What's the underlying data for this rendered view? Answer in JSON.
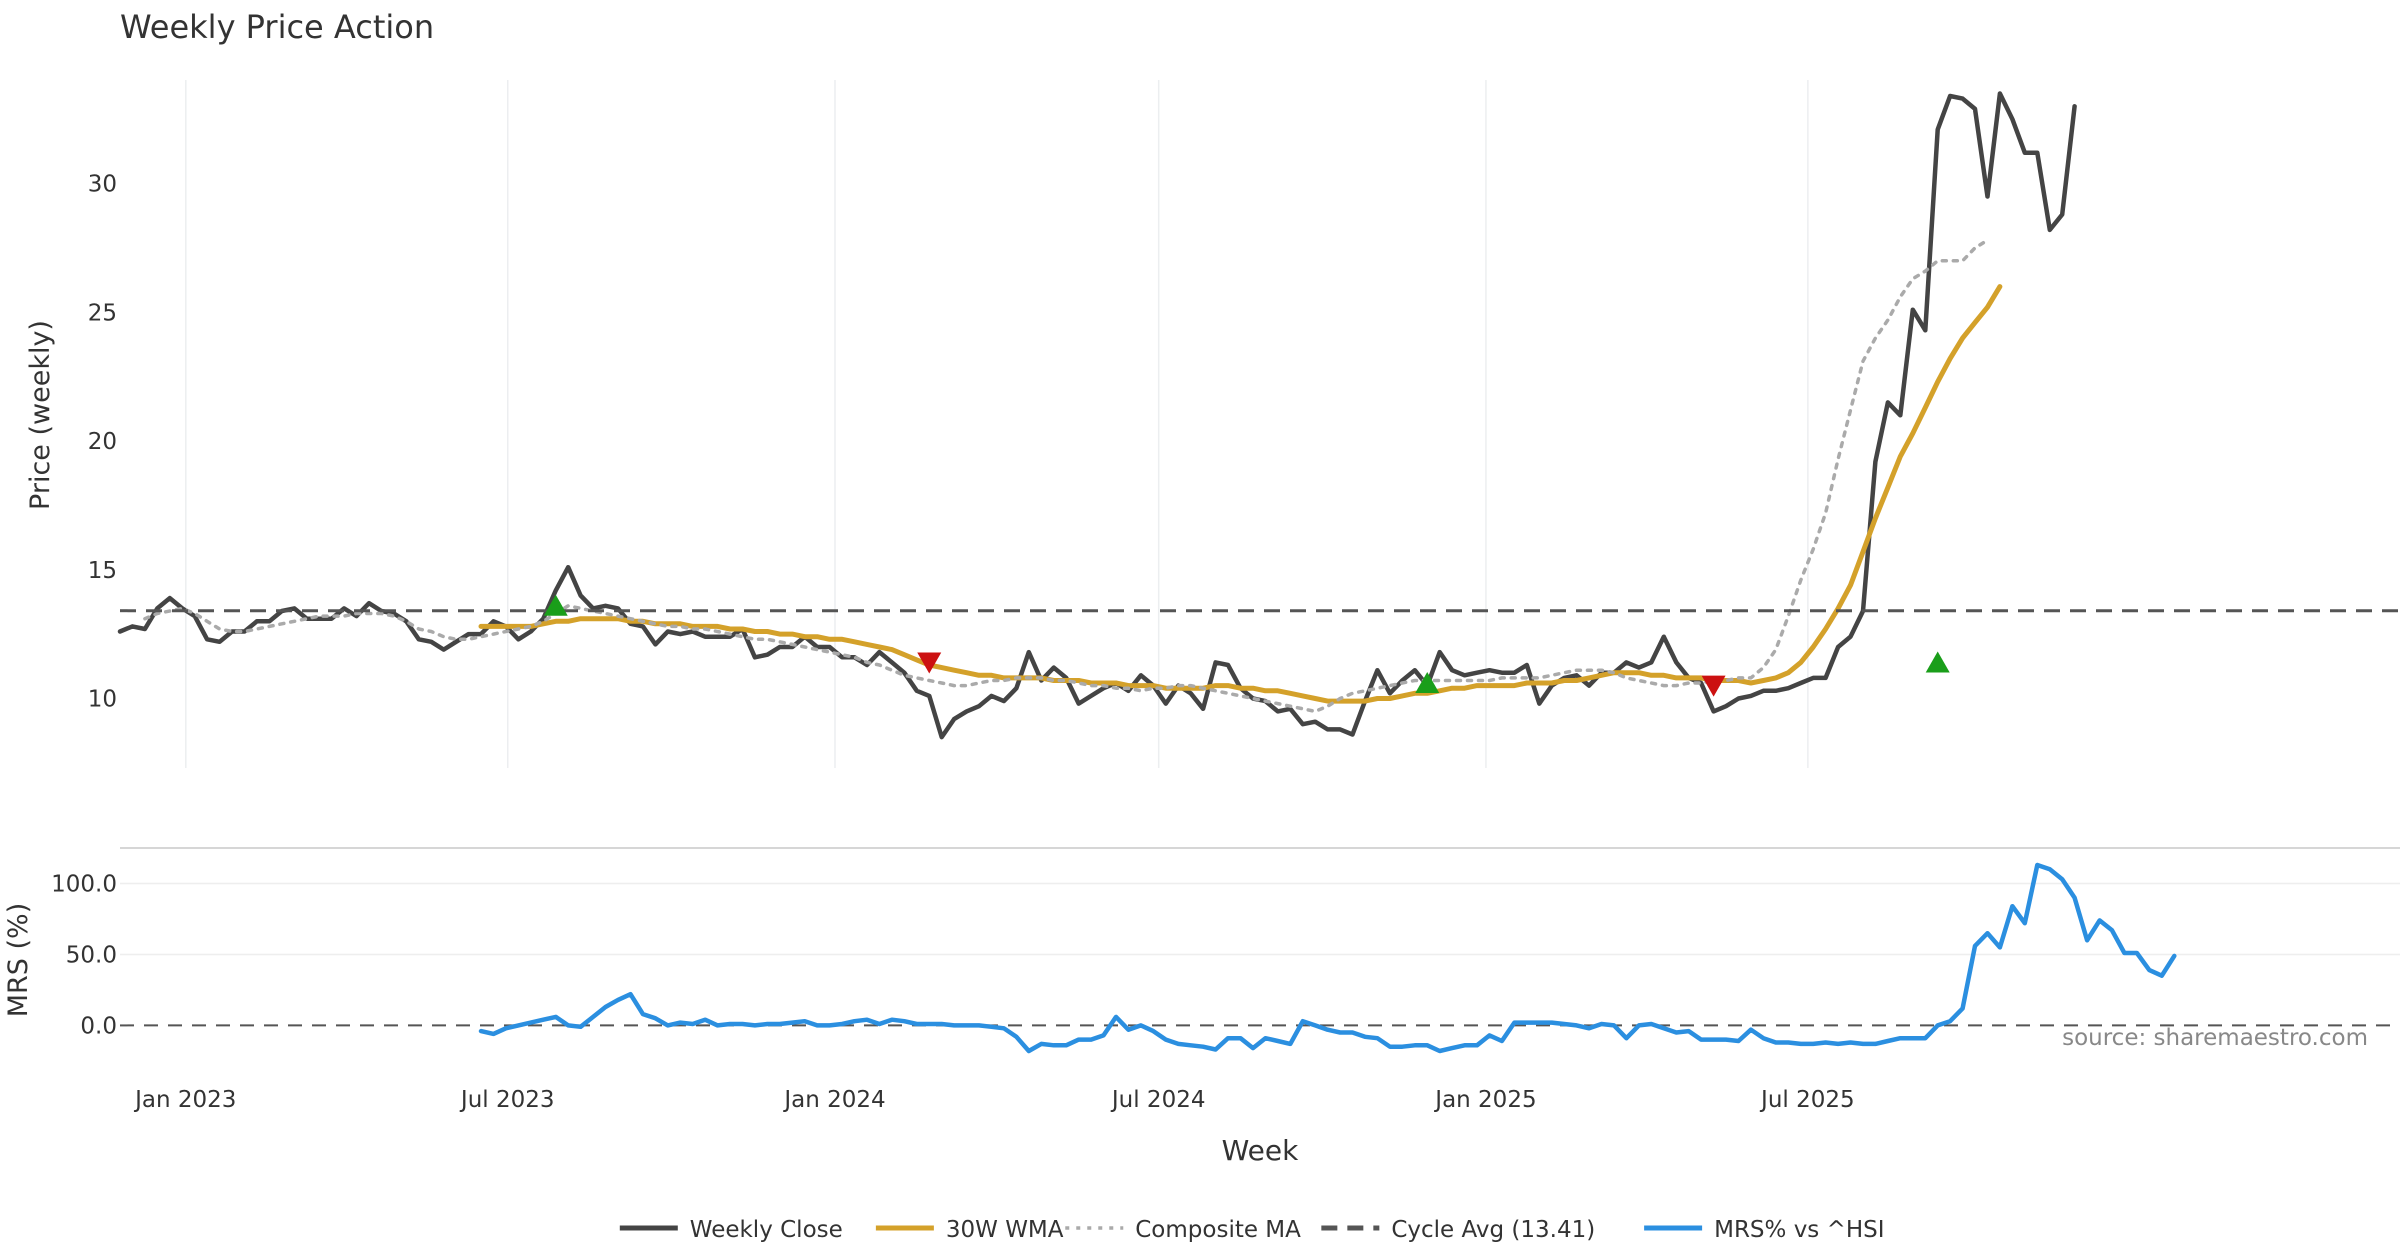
{
  "chart_data": {
    "type": "line",
    "title": "Weekly Price Action",
    "xlabel": "Week",
    "x_start": "2022-11-25",
    "x_step_days": 7,
    "x_tick_labels": [
      {
        "label": "Jan 2023",
        "date": "2023-01-01"
      },
      {
        "label": "Jul 2023",
        "date": "2023-07-01"
      },
      {
        "label": "Jan 2024",
        "date": "2024-01-01"
      },
      {
        "label": "Jul 2024",
        "date": "2024-07-01"
      },
      {
        "label": "Jan 2025",
        "date": "2025-01-01"
      },
      {
        "label": "Jul 2025",
        "date": "2025-07-01"
      }
    ],
    "price_panel": {
      "ylabel": "Price (weekly)",
      "ylim": [
        7.3,
        34.8
      ],
      "yticks": [
        10,
        15,
        20,
        25,
        30
      ],
      "grid": "vertical"
    },
    "mrs_panel": {
      "ylabel": "MRS (%)",
      "ylim": [
        -30,
        125
      ],
      "yticks": [
        0,
        50,
        100
      ],
      "ytick_labels": [
        "0.0",
        "50.0",
        "100.0"
      ],
      "grid": "horizontal"
    },
    "series": [
      {
        "name": "Weekly Close",
        "panel": "price",
        "color": "#444444",
        "style": "solid",
        "start_index": 0,
        "values": [
          12.6,
          12.8,
          12.7,
          13.5,
          13.9,
          13.5,
          13.2,
          12.3,
          12.2,
          12.6,
          12.6,
          13.0,
          13.0,
          13.4,
          13.5,
          13.1,
          13.1,
          13.1,
          13.5,
          13.2,
          13.7,
          13.4,
          13.3,
          13.0,
          12.3,
          12.2,
          11.9,
          12.2,
          12.5,
          12.5,
          13.0,
          12.8,
          12.3,
          12.6,
          13.1,
          14.2,
          15.1,
          14.0,
          13.5,
          13.6,
          13.5,
          12.9,
          12.8,
          12.1,
          12.6,
          12.5,
          12.6,
          12.4,
          12.4,
          12.4,
          12.7,
          11.6,
          11.7,
          12.0,
          12.0,
          12.4,
          12.0,
          12.0,
          11.6,
          11.6,
          11.3,
          11.8,
          11.4,
          11.0,
          10.3,
          10.1,
          8.5,
          9.2,
          9.5,
          9.7,
          10.1,
          9.9,
          10.4,
          11.8,
          10.7,
          11.2,
          10.8,
          9.8,
          10.1,
          10.4,
          10.6,
          10.3,
          10.9,
          10.5,
          9.8,
          10.5,
          10.2,
          9.6,
          11.4,
          11.3,
          10.4,
          10.0,
          9.9,
          9.5,
          9.6,
          9.0,
          9.1,
          8.8,
          8.8,
          8.6,
          9.9,
          11.1,
          10.2,
          10.7,
          11.1,
          10.5,
          11.8,
          11.1,
          10.9,
          11.0,
          11.1,
          11.0,
          11.0,
          11.3,
          9.8,
          10.5,
          10.8,
          10.9,
          10.5,
          11.0,
          11.0,
          11.4,
          11.2,
          11.4,
          12.4,
          11.4,
          10.8,
          10.6,
          9.5,
          9.7,
          10.0,
          10.1,
          10.3,
          10.3,
          10.4,
          10.6,
          10.8,
          10.8,
          12.0,
          12.4,
          13.4,
          19.2,
          21.5,
          21.0,
          25.1,
          24.3,
          32.1,
          33.4,
          33.3,
          32.9,
          29.5,
          33.5,
          32.5,
          31.2,
          31.2,
          28.2,
          28.8,
          33.0
        ]
      },
      {
        "name": "30W WMA",
        "panel": "price",
        "color": "#D4A12A",
        "style": "solid",
        "start_index": 29,
        "values": [
          12.8,
          12.8,
          12.8,
          12.8,
          12.8,
          12.9,
          13.0,
          13.0,
          13.1,
          13.1,
          13.1,
          13.1,
          13.0,
          13.0,
          12.9,
          12.9,
          12.9,
          12.8,
          12.8,
          12.8,
          12.7,
          12.7,
          12.6,
          12.6,
          12.5,
          12.5,
          12.4,
          12.4,
          12.3,
          12.3,
          12.2,
          12.1,
          12.0,
          11.9,
          11.7,
          11.5,
          11.3,
          11.2,
          11.1,
          11.0,
          10.9,
          10.9,
          10.8,
          10.8,
          10.8,
          10.8,
          10.7,
          10.7,
          10.7,
          10.6,
          10.6,
          10.6,
          10.5,
          10.5,
          10.5,
          10.4,
          10.4,
          10.4,
          10.4,
          10.5,
          10.5,
          10.4,
          10.4,
          10.3,
          10.3,
          10.2,
          10.1,
          10.0,
          9.9,
          9.9,
          9.9,
          9.9,
          10.0,
          10.0,
          10.1,
          10.2,
          10.2,
          10.3,
          10.4,
          10.4,
          10.5,
          10.5,
          10.5,
          10.5,
          10.6,
          10.6,
          10.6,
          10.7,
          10.7,
          10.8,
          10.9,
          11.0,
          11.0,
          11.0,
          10.9,
          10.9,
          10.8,
          10.8,
          10.8,
          10.7,
          10.7,
          10.7,
          10.6,
          10.7,
          10.8,
          11.0,
          11.4,
          12.0,
          12.7,
          13.5,
          14.4,
          15.7,
          17.0,
          18.2,
          19.4,
          20.3,
          21.3,
          22.3,
          23.2,
          24.0,
          24.6,
          25.2,
          26.0
        ]
      },
      {
        "name": "Composite MA",
        "panel": "price",
        "color": "#AAAAAA",
        "style": "dotted",
        "start_index": 2,
        "values": [
          13.1,
          13.3,
          13.4,
          13.5,
          13.3,
          13.0,
          12.7,
          12.6,
          12.6,
          12.7,
          12.8,
          12.9,
          13.0,
          13.1,
          13.2,
          13.2,
          13.2,
          13.3,
          13.3,
          13.3,
          13.2,
          13.0,
          12.7,
          12.6,
          12.4,
          12.3,
          12.3,
          12.4,
          12.5,
          12.6,
          12.7,
          12.8,
          13.0,
          13.3,
          13.6,
          13.5,
          13.4,
          13.3,
          13.2,
          13.1,
          13.0,
          12.9,
          12.8,
          12.8,
          12.7,
          12.7,
          12.6,
          12.5,
          12.4,
          12.3,
          12.3,
          12.2,
          12.1,
          12.0,
          11.9,
          11.8,
          11.7,
          11.6,
          11.4,
          11.3,
          11.1,
          10.9,
          10.8,
          10.7,
          10.6,
          10.5,
          10.5,
          10.6,
          10.7,
          10.7,
          10.8,
          10.8,
          10.8,
          10.7,
          10.7,
          10.6,
          10.5,
          10.5,
          10.4,
          10.4,
          10.3,
          10.4,
          10.4,
          10.5,
          10.5,
          10.4,
          10.3,
          10.2,
          10.1,
          10.0,
          9.9,
          9.8,
          9.7,
          9.6,
          9.5,
          9.7,
          10.0,
          10.2,
          10.3,
          10.4,
          10.5,
          10.6,
          10.7,
          10.7,
          10.7,
          10.7,
          10.7,
          10.7,
          10.7,
          10.8,
          10.8,
          10.8,
          10.8,
          10.9,
          11.0,
          11.1,
          11.1,
          11.1,
          11.0,
          10.8,
          10.7,
          10.6,
          10.5,
          10.5,
          10.6,
          10.6,
          10.7,
          10.7,
          10.8,
          10.8,
          11.2,
          11.9,
          13.2,
          14.6,
          15.8,
          17.2,
          19.3,
          21.2,
          23.1,
          24.0,
          24.7,
          25.6,
          26.3,
          26.6,
          27.0,
          27.0,
          27.0,
          27.5,
          27.8
        ]
      },
      {
        "name": "Cycle Avg (13.41)",
        "panel": "price",
        "color": "#555555",
        "style": "dashed",
        "constant": 13.41
      },
      {
        "name": "MRS% vs ^HSI",
        "panel": "mrs",
        "color": "#2B8FE0",
        "style": "solid",
        "start_index": 29,
        "values": [
          -4,
          -6,
          -2,
          0,
          2,
          4,
          6,
          0,
          -1,
          6,
          13,
          18,
          22,
          8,
          5,
          0,
          2,
          1,
          4,
          0,
          1,
          1,
          0,
          1,
          1,
          2,
          3,
          0,
          0,
          1,
          3,
          4,
          1,
          4,
          3,
          1,
          1,
          1,
          0,
          0,
          0,
          -1,
          -2,
          -8,
          -18,
          -13,
          -14,
          -14,
          -10,
          -10,
          -7,
          6,
          -3,
          0,
          -4,
          -10,
          -13,
          -14,
          -15,
          -17,
          -9,
          -9,
          -16,
          -9,
          -11,
          -13,
          3,
          0,
          -3,
          -5,
          -5,
          -8,
          -9,
          -15,
          -15,
          -14,
          -14,
          -18,
          -16,
          -14,
          -14,
          -7,
          -11,
          2,
          2,
          2,
          2,
          1,
          0,
          -2,
          1,
          0,
          -9,
          0,
          1,
          -2,
          -5,
          -4,
          -10,
          -10,
          -10,
          -11,
          -3,
          -9,
          -12,
          -12,
          -13,
          -13,
          -12,
          -13,
          -12,
          -13,
          -13,
          -11,
          -9,
          -9,
          -9,
          0,
          3,
          12,
          56,
          65,
          55,
          84,
          72,
          113,
          110,
          103,
          90,
          60,
          74,
          67,
          51,
          51,
          39,
          35,
          49
        ]
      }
    ],
    "signals": [
      {
        "type": "buy",
        "color": "#1A9E1A",
        "index": 35,
        "value": 13.6
      },
      {
        "type": "sell",
        "color": "#CC1111",
        "index": 65,
        "value": 11.4
      },
      {
        "type": "buy",
        "color": "#1A9E1A",
        "index": 105,
        "value": 10.6
      },
      {
        "type": "sell",
        "color": "#CC1111",
        "index": 128,
        "value": 10.5
      },
      {
        "type": "buy",
        "color": "#1A9E1A",
        "index": 146,
        "value": 11.4
      }
    ],
    "annotations": [
      {
        "text": "source: sharemaestro.com",
        "location": "bottom-right of MRS panel"
      }
    ],
    "legend_position": "bottom-center"
  }
}
